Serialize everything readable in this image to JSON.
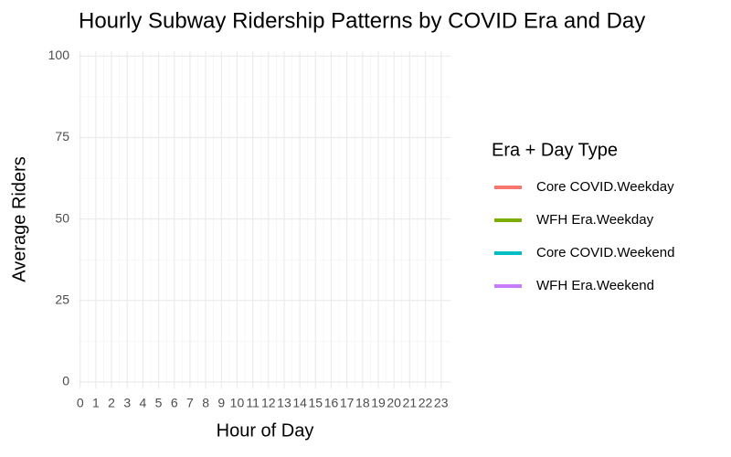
{
  "chart_data": {
    "type": "line",
    "title": "Hourly Subway Ridership Patterns by COVID Era and Day",
    "x_label": "Hour of Day",
    "y_label": "Average Riders",
    "legend_title": "Era + Day Type",
    "legend_position": "right",
    "grid": true,
    "x": [
      0,
      1,
      2,
      3,
      4,
      5,
      6,
      7,
      8,
      9,
      10,
      11,
      12,
      13,
      14,
      15,
      16,
      17,
      18,
      19,
      20,
      21,
      22,
      23
    ],
    "xlim": [
      -0.1,
      23.6
    ],
    "xticks": [
      0,
      1,
      2,
      3,
      4,
      5,
      6,
      7,
      8,
      9,
      10,
      11,
      12,
      13,
      14,
      15,
      16,
      17,
      18,
      19,
      20,
      21,
      22,
      23
    ],
    "ylim": [
      -2,
      101.5
    ],
    "yticks": [
      0,
      25,
      50,
      75,
      100
    ],
    "series": [
      {
        "name": "Core COVID.Weekday",
        "color": "#F8766D",
        "values": [
          null,
          null,
          null,
          null,
          null,
          null,
          null,
          null,
          null,
          null,
          null,
          null,
          null,
          null,
          null,
          null,
          null,
          null,
          null,
          null,
          null,
          null,
          null,
          null
        ]
      },
      {
        "name": "WFH Era.Weekday",
        "color": "#7CAE00",
        "values": [
          null,
          null,
          null,
          null,
          null,
          null,
          null,
          null,
          null,
          null,
          null,
          null,
          null,
          null,
          null,
          null,
          null,
          null,
          null,
          null,
          null,
          null,
          null,
          null
        ]
      },
      {
        "name": "Core COVID.Weekend",
        "color": "#00BFC4",
        "values": [
          null,
          null,
          null,
          null,
          null,
          null,
          null,
          null,
          null,
          null,
          null,
          null,
          null,
          null,
          null,
          null,
          null,
          null,
          null,
          null,
          null,
          null,
          null,
          null
        ]
      },
      {
        "name": "WFH Era.Weekend",
        "color": "#C77CFF",
        "values": [
          null,
          null,
          null,
          null,
          null,
          null,
          null,
          null,
          null,
          null,
          null,
          null,
          null,
          null,
          null,
          null,
          null,
          null,
          null,
          null,
          null,
          null,
          null,
          null
        ]
      }
    ]
  }
}
